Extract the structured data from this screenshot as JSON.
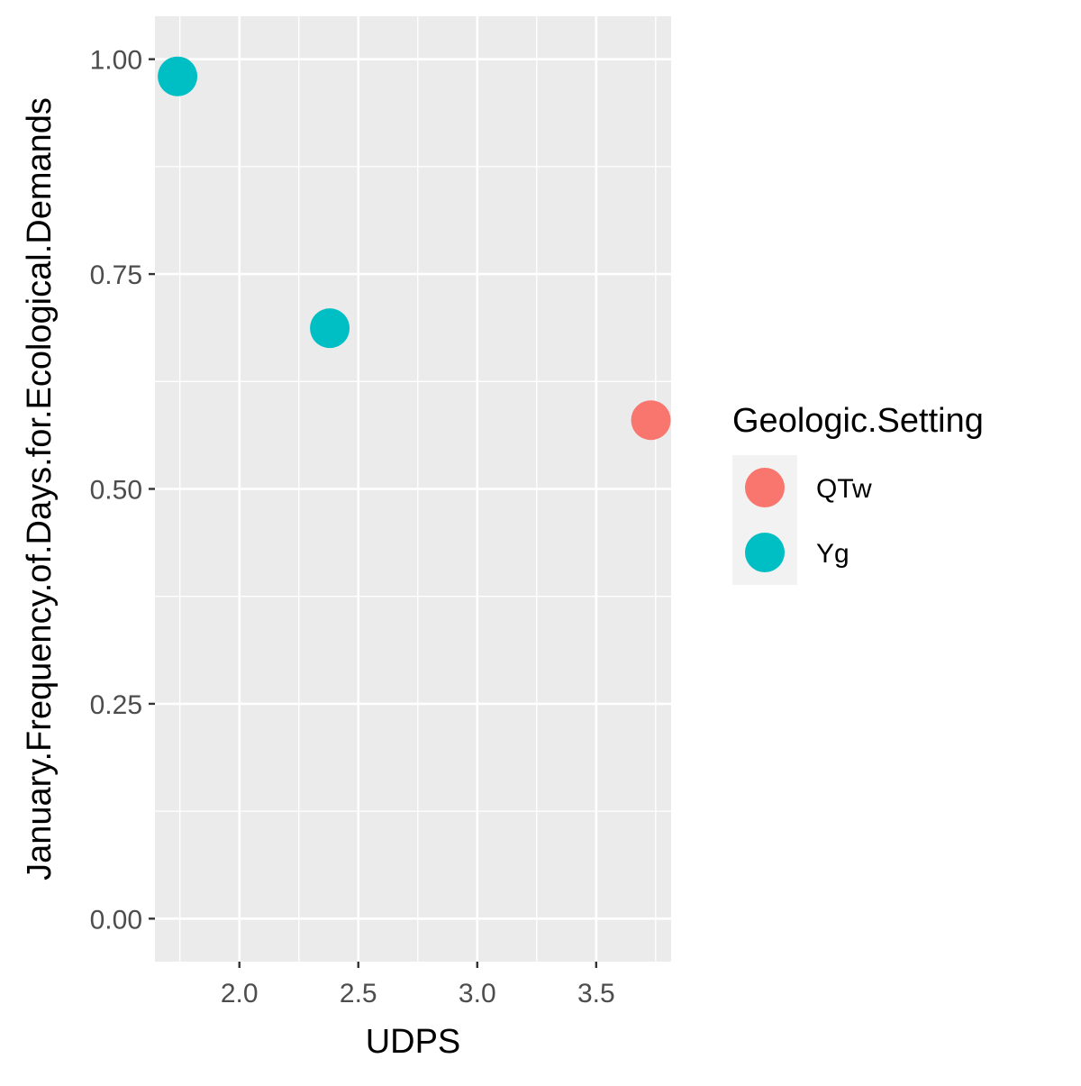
{
  "chart_data": {
    "type": "scatter",
    "xlabel": "UDPS",
    "ylabel": "January.Frequency.of.Days.for.Ecological.Demands",
    "xlim": [
      1.645,
      3.815
    ],
    "ylim": [
      -0.05,
      1.05
    ],
    "x_ticks": [
      2.0,
      2.5,
      3.0,
      3.5
    ],
    "x_tick_labels": [
      "2.0",
      "2.5",
      "3.0",
      "3.5"
    ],
    "y_ticks": [
      0.0,
      0.25,
      0.5,
      0.75,
      1.0
    ],
    "y_tick_labels": [
      "0.00",
      "0.25",
      "0.50",
      "0.75",
      "1.00"
    ],
    "grid": true,
    "legend": {
      "title": "Geologic.Setting",
      "placement": "right",
      "entries": [
        {
          "label": "QTw",
          "color": "#F8766D"
        },
        {
          "label": "Yg",
          "color": "#00BFC4"
        }
      ]
    },
    "series": [
      {
        "name": "QTw",
        "color": "#F8766D",
        "points": [
          {
            "x": 3.73,
            "y": 0.58
          }
        ]
      },
      {
        "name": "Yg",
        "color": "#00BFC4",
        "points": [
          {
            "x": 1.74,
            "y": 0.98
          },
          {
            "x": 2.38,
            "y": 0.687
          }
        ]
      }
    ],
    "panel_background": "#EBEBEB",
    "grid_color": "#FFFFFF"
  }
}
